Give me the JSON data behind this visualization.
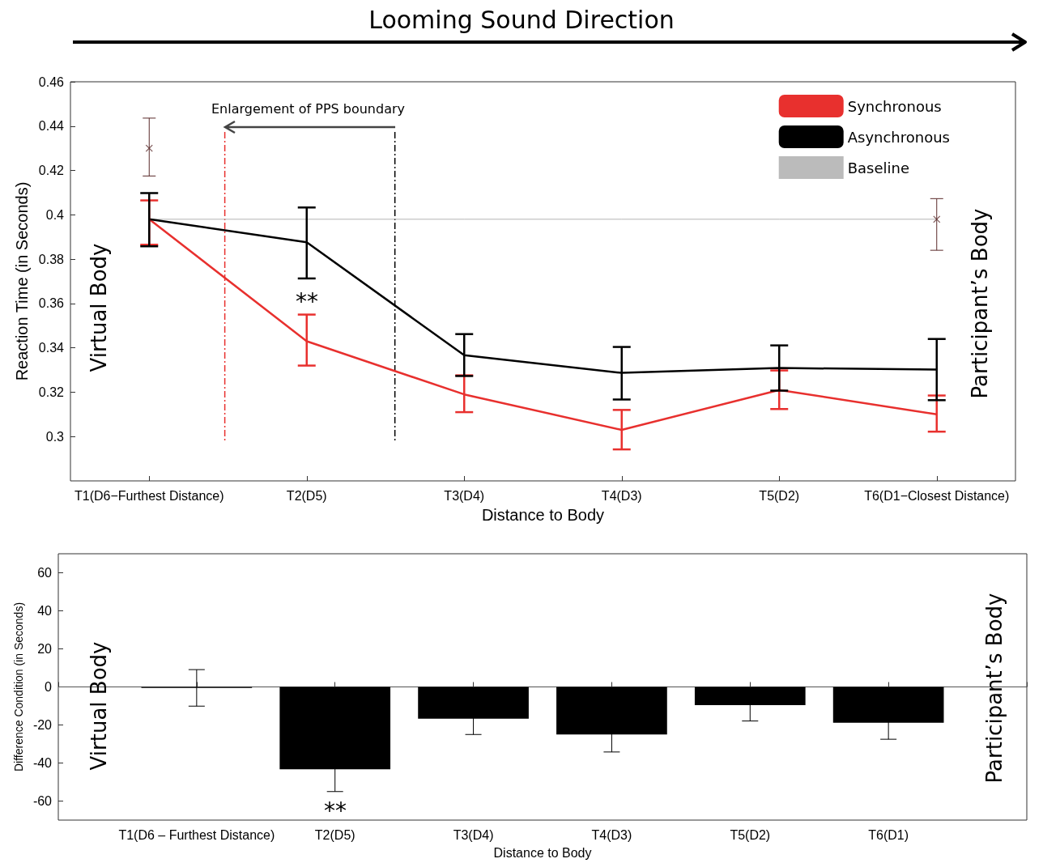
{
  "chart_data": [
    {
      "type": "line",
      "title": "Looming Sound Direction",
      "xlabel": "Distance to Body",
      "ylabel": "Reaction Time (in Seconds)",
      "categories": [
        "T1(D6−Furthest Distance)",
        "T2(D5)",
        "T3(D4)",
        "T4(D3)",
        "T5(D2)",
        "T6(D1−Closest Distance)"
      ],
      "series": [
        {
          "name": "Synchronous",
          "color": "#e8302e",
          "values": [
            0.398,
            0.343,
            0.319,
            0.303,
            0.321,
            0.31
          ],
          "errors": [
            [
              0.3865,
              0.4065
            ],
            [
              0.332,
              0.355
            ],
            [
              0.311,
              0.3276
            ],
            [
              0.2942,
              0.312
            ],
            [
              0.3124,
              0.3298
            ],
            [
              0.3022,
              0.3185
            ]
          ],
          "marker": "none",
          "line_style": "solid"
        },
        {
          "name": "Asynchronous",
          "color": "#000000",
          "values": [
            0.398,
            0.3876,
            0.3367,
            0.3287,
            0.3309,
            0.3302
          ],
          "errors": [
            [
              0.3858,
              0.4098
            ],
            [
              0.3713,
              0.4033
            ],
            [
              0.3273,
              0.3462
            ],
            [
              0.3167,
              0.3404
            ],
            [
              0.3207,
              0.3411
            ],
            [
              0.3164,
              0.344
            ]
          ],
          "marker": "none",
          "line_style": "solid"
        },
        {
          "name": "Baseline",
          "color": "#b4b4b4",
          "values": [
            0.398,
            0.398,
            0.398,
            0.398,
            0.398,
            0.398
          ],
          "marker": "none",
          "line_style": "solid"
        },
        {
          "type": "scatter",
          "color": "#5a2a2a",
          "values": [
            0.43,
            null,
            null,
            null,
            null,
            0.398
          ],
          "errors": [
            [
              0.4175,
              0.4436
            ],
            null,
            null,
            null,
            null,
            [
              0.384,
              0.4073
            ]
          ],
          "marker": "cross"
        }
      ],
      "ylim": [
        0.28,
        0.46
      ],
      "yticks": [
        0.3,
        0.32,
        0.34,
        0.36,
        0.38,
        0.4,
        0.42,
        0.44,
        0.46
      ],
      "legend": "top right",
      "annotations": [
        "Enlargement of PPS boundary",
        "Virtual Body",
        "Participant’s Body",
        "**"
      ]
    },
    {
      "type": "bar",
      "xlabel": "Distance to Body",
      "ylabel": "Difference Condition (in Seconds)",
      "categories": [
        null,
        "T1(D6 – Furthest Distance)",
        "T2(D5)",
        "T3(D4)",
        "T4(D3)",
        "T5(D2)",
        "T6(D1)",
        null
      ],
      "values": [
        null,
        -0.5,
        -43.3,
        -16.7,
        -25,
        -9.6,
        -18.8,
        null
      ],
      "errors": [
        null,
        9.6,
        11.7,
        8.3,
        9.2,
        8.3,
        8.7,
        null
      ],
      "color": "#000000",
      "ylim": [
        -70,
        70
      ],
      "yticks": [
        -60,
        -40,
        -20,
        0,
        20,
        40,
        60
      ],
      "legend": false,
      "annotations": [
        "Virtual Body",
        "Participant’s Body",
        "**"
      ]
    }
  ]
}
